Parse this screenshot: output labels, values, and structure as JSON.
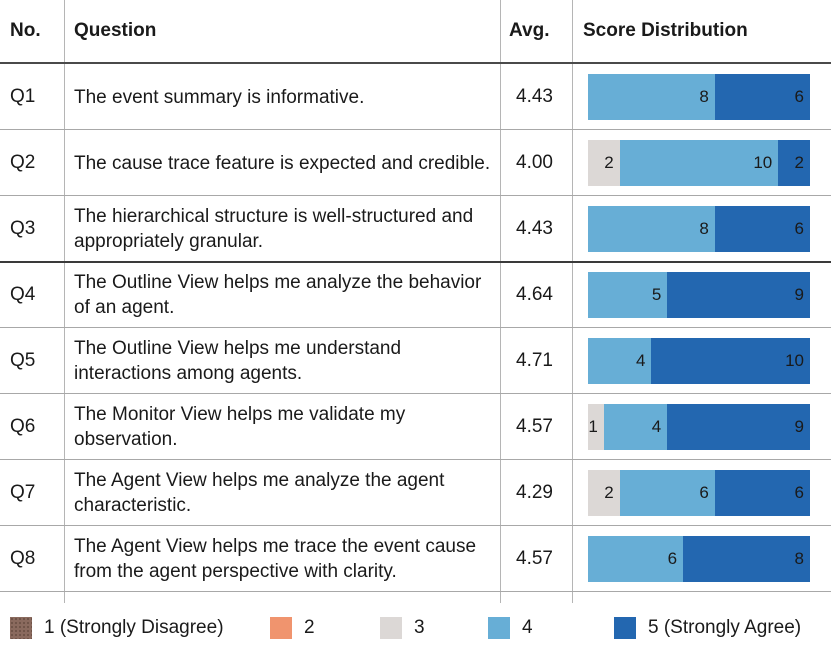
{
  "headers": {
    "no": "No.",
    "question": "Question",
    "avg": "Avg.",
    "dist": "Score Distribution"
  },
  "colors": {
    "s1": "#8a6a5e",
    "s2": "#f0946e",
    "s3": "#dcd8d6",
    "s4": "#67aed6",
    "s5": "#2367b0"
  },
  "chart_data": {
    "type": "bar",
    "stacked": true,
    "orientation": "horizontal",
    "categories": [
      "Q1",
      "Q2",
      "Q3",
      "Q4",
      "Q5",
      "Q6",
      "Q7",
      "Q8"
    ],
    "questions": [
      "The event summary is informative.",
      "The cause trace feature is expected and credible.",
      "The hierarchical structure is well-structured and appropriately granular.",
      "The Outline View helps me analyze the behavior of an agent.",
      "The Outline View helps me understand interactions among agents.",
      "The Monitor View helps me validate my observation.",
      "The Agent View helps me analyze the agent characteristic.",
      "The Agent View helps me trace the event cause from the agent perspective with clarity."
    ],
    "averages": [
      "4.43",
      "4.00",
      "4.43",
      "4.64",
      "4.71",
      "4.57",
      "4.29",
      "4.57"
    ],
    "series": [
      {
        "name": "1 (Strongly Disagree)",
        "values": [
          0,
          0,
          0,
          0,
          0,
          0,
          0,
          0
        ]
      },
      {
        "name": "2",
        "values": [
          0,
          0,
          0,
          0,
          0,
          0,
          0,
          0
        ]
      },
      {
        "name": "3",
        "values": [
          0,
          2,
          0,
          0,
          0,
          1,
          2,
          0
        ]
      },
      {
        "name": "4",
        "values": [
          8,
          10,
          8,
          5,
          4,
          4,
          6,
          6
        ]
      },
      {
        "name": "5 (Strongly Agree)",
        "values": [
          6,
          2,
          6,
          9,
          10,
          9,
          6,
          8
        ]
      }
    ],
    "total": 14
  }
}
